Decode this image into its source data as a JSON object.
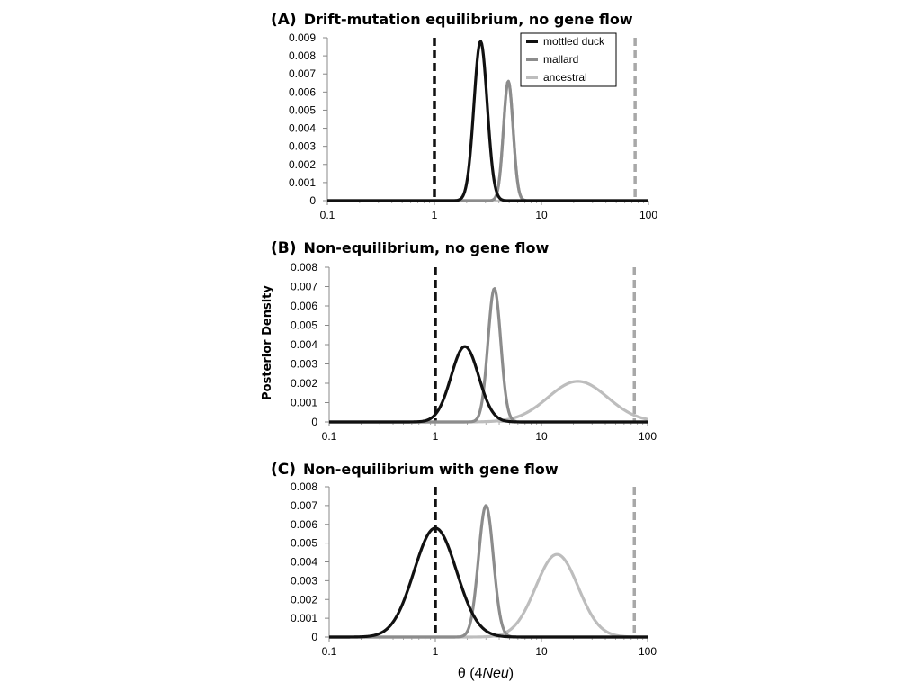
{
  "figure": {
    "ylabel": "Posterior Density",
    "xlabel": "θ (4Neu)",
    "x_log_scale": true,
    "xlim": [
      0.1,
      100
    ],
    "xticks": [
      0.1,
      1,
      10,
      100
    ],
    "xtick_labels": [
      "0.1",
      "1",
      "10",
      "100"
    ]
  },
  "legend": {
    "placement": "top-right of panel A",
    "items": [
      {
        "label": "mottled duck",
        "color": "#111111"
      },
      {
        "label": "mallard",
        "color": "#8c8c8c"
      },
      {
        "label": "ancestral",
        "color": "#bdbdbd"
      }
    ]
  },
  "chart_data": [
    {
      "type": "line",
      "panel_label": "(A)",
      "title": "Drift-mutation equilibrium, no gene flow",
      "ylim": [
        0,
        0.009
      ],
      "yticks": [
        "0",
        "0.001",
        "0.002",
        "0.003",
        "0.004",
        "0.005",
        "0.006",
        "0.007",
        "0.008",
        "0.009"
      ],
      "series": [
        {
          "name": "mottled duck",
          "peak_x": 2.7,
          "peak_y": 0.0088,
          "sd_log10": 0.062
        },
        {
          "name": "mallard",
          "peak_x": 4.9,
          "peak_y": 0.0066,
          "sd_log10": 0.045
        },
        {
          "name": "ancestral",
          "peak_x": 4.9,
          "peak_y": 0.0066,
          "sd_log10": 0.045
        }
      ],
      "reference_lines": [
        {
          "x": 1,
          "color": "#111111",
          "style": "dashed"
        },
        {
          "x": 75,
          "color": "#a8a8a8",
          "style": "dashed"
        }
      ]
    },
    {
      "type": "line",
      "panel_label": "(B)",
      "title": "Non-equilibrium, no gene flow",
      "ylim": [
        0,
        0.008
      ],
      "yticks": [
        "0",
        "0.001",
        "0.002",
        "0.003",
        "0.004",
        "0.005",
        "0.006",
        "0.007",
        "0.008"
      ],
      "series": [
        {
          "name": "mottled duck",
          "peak_x": 1.9,
          "peak_y": 0.0039,
          "sd_log10": 0.13
        },
        {
          "name": "mallard",
          "peak_x": 3.6,
          "peak_y": 0.0069,
          "sd_log10": 0.06
        },
        {
          "name": "ancestral",
          "peak_x": 22,
          "peak_y": 0.0021,
          "sd_log10": 0.28
        }
      ],
      "reference_lines": [
        {
          "x": 1,
          "color": "#111111",
          "style": "dashed"
        },
        {
          "x": 75,
          "color": "#a8a8a8",
          "style": "dashed"
        }
      ]
    },
    {
      "type": "line",
      "panel_label": "(C)",
      "title": "Non-equilibrium with gene flow",
      "ylim": [
        0,
        0.008
      ],
      "yticks": [
        "0",
        "0.001",
        "0.002",
        "0.003",
        "0.004",
        "0.005",
        "0.006",
        "0.007",
        "0.008"
      ],
      "series": [
        {
          "name": "mottled duck",
          "peak_x": 1.0,
          "peak_y": 0.0058,
          "sd_log10": 0.2
        },
        {
          "name": "mallard",
          "peak_x": 3.0,
          "peak_y": 0.007,
          "sd_log10": 0.07
        },
        {
          "name": "ancestral",
          "peak_x": 14,
          "peak_y": 0.0044,
          "sd_log10": 0.2
        }
      ],
      "reference_lines": [
        {
          "x": 1,
          "color": "#111111",
          "style": "dashed"
        },
        {
          "x": 75,
          "color": "#a8a8a8",
          "style": "dashed"
        }
      ]
    }
  ]
}
